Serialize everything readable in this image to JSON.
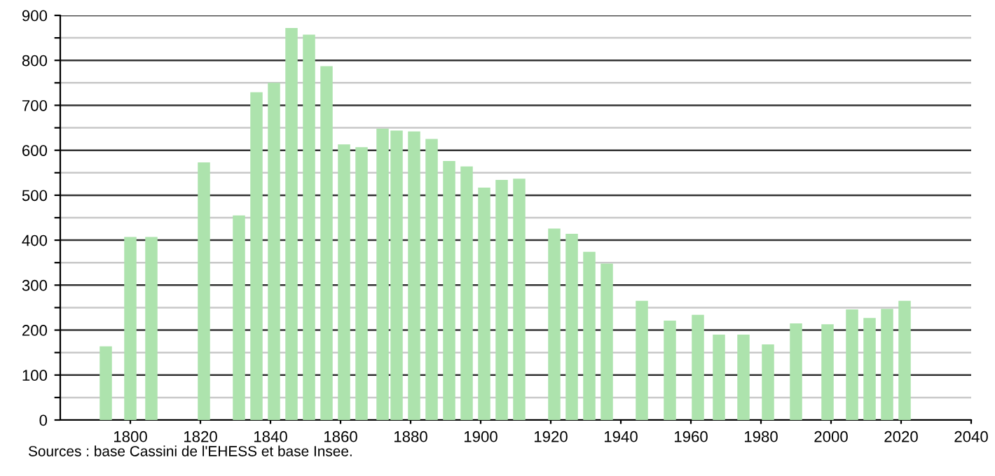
{
  "chart_data": {
    "type": "bar",
    "x": [
      1793,
      1800,
      1806,
      1821,
      1831,
      1836,
      1841,
      1846,
      1851,
      1856,
      1861,
      1866,
      1872,
      1876,
      1881,
      1886,
      1891,
      1896,
      1901,
      1906,
      1911,
      1921,
      1926,
      1931,
      1936,
      1946,
      1954,
      1962,
      1968,
      1975,
      1982,
      1990,
      1999,
      2006,
      2011,
      2016,
      2021
    ],
    "values": [
      164,
      407,
      407,
      573,
      455,
      729,
      750,
      872,
      857,
      787,
      613,
      607,
      648,
      644,
      642,
      625,
      576,
      564,
      517,
      534,
      537,
      426,
      414,
      374,
      348,
      265,
      221,
      234,
      190,
      190,
      168,
      215,
      213,
      246,
      227,
      247,
      265
    ],
    "color": "#ade3ad",
    "xlim": [
      1780,
      2040
    ],
    "xticks": [
      1800,
      1820,
      1840,
      1860,
      1880,
      1900,
      1920,
      1940,
      1960,
      1980,
      2000,
      2020,
      2040
    ],
    "ylim": [
      0,
      900
    ],
    "yticks": [
      0,
      {
        "value": 50,
        "label": null
      },
      100,
      {
        "value": 150,
        "label": null
      },
      200,
      {
        "value": 250,
        "label": null
      },
      300,
      {
        "value": 350,
        "label": null
      },
      400,
      {
        "value": 450,
        "label": null
      },
      500,
      {
        "value": 550,
        "label": null
      },
      600,
      {
        "value": 650,
        "label": null
      },
      700,
      {
        "value": 750,
        "label": null
      },
      800,
      {
        "value": 850,
        "label": null
      },
      900
    ],
    "grid": "y",
    "annotations": [
      "Sources : base Cassini de l'EHESS et base Insee."
    ]
  }
}
